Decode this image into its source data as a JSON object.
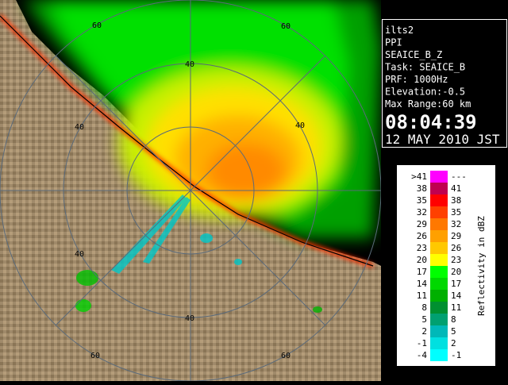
{
  "radar": {
    "info": [
      "ilts2",
      "PPI",
      "SEAICE_B_Z",
      "Task: SEAICE_B",
      "PRF: 1000Hz",
      "Elevation:-0.5",
      "Max Range:60 km"
    ],
    "time": "08:04:39",
    "date": "12 MAY 2010 JST",
    "range_labels": [
      {
        "text": "60",
        "pos": "nw"
      },
      {
        "text": "60",
        "pos": "ne"
      },
      {
        "text": "40",
        "pos": "n"
      },
      {
        "text": "40",
        "pos": "w-up"
      },
      {
        "text": "40",
        "pos": "e-up"
      },
      {
        "text": "40",
        "pos": "w-down"
      },
      {
        "text": "40",
        "pos": "s"
      },
      {
        "text": "60",
        "pos": "sw"
      },
      {
        "text": "60",
        "pos": "se"
      }
    ],
    "legend": {
      "title": "Reflectivity in dBZ",
      "rows": [
        {
          "low": ">41",
          "high": "---",
          "color": "#ff00ff"
        },
        {
          "low": "38",
          "high": "41",
          "color": "#c00050"
        },
        {
          "low": "35",
          "high": "38",
          "color": "#ff0000"
        },
        {
          "low": "32",
          "high": "35",
          "color": "#ff4000"
        },
        {
          "low": "29",
          "high": "32",
          "color": "#ff7800"
        },
        {
          "low": "26",
          "high": "29",
          "color": "#ffa000"
        },
        {
          "low": "23",
          "high": "26",
          "color": "#ffc800"
        },
        {
          "low": "20",
          "high": "23",
          "color": "#ffff00"
        },
        {
          "low": "17",
          "high": "20",
          "color": "#00ff00"
        },
        {
          "low": "14",
          "high": "17",
          "color": "#00d800"
        },
        {
          "low": "11",
          "high": "14",
          "color": "#00b000"
        },
        {
          "low": "8",
          "high": "11",
          "color": "#009030"
        },
        {
          "low": "5",
          "high": "8",
          "color": "#00a070"
        },
        {
          "low": "2",
          "high": "5",
          "color": "#00b8b8"
        },
        {
          "low": "-1",
          "high": "2",
          "color": "#00e0e0"
        },
        {
          "low": "-4",
          "high": "-1",
          "color": "#00ffff"
        }
      ]
    }
  }
}
